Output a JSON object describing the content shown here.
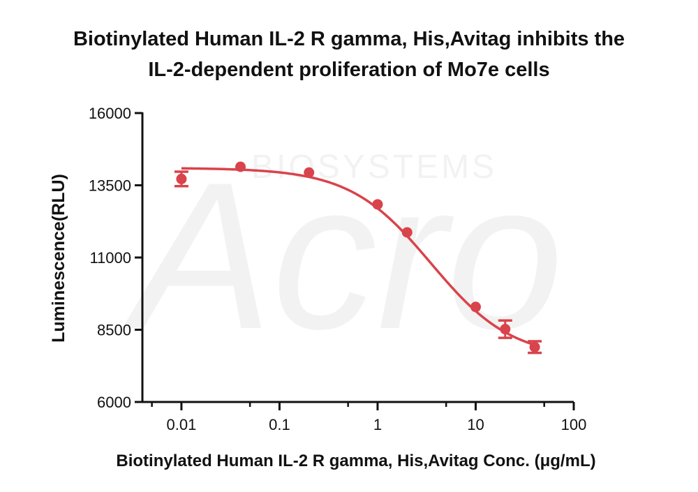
{
  "title_line1": "Biotinylated Human IL-2 R gamma, His,Avitag inhibits the",
  "title_line2": "IL-2-dependent proliferation of Mo7e cells",
  "watermark": {
    "text": "Acro",
    "subtext": "BIOSYSTEMS"
  },
  "chart_data": {
    "type": "scatter",
    "title": "Biotinylated Human IL-2 R gamma, His,Avitag inhibits the IL-2-dependent proliferation of Mo7e cells",
    "xlabel": "Biotinylated Human IL-2 R gamma, His,Avitag Conc. (μg/mL)",
    "ylabel": "Luminescence(RLU)",
    "xscale": "log",
    "xlim": [
      0.004,
      100
    ],
    "ylim": [
      6000,
      16000
    ],
    "xticks": [
      0.01,
      0.1,
      1,
      10,
      100
    ],
    "xtick_labels": [
      "0.01",
      "0.1",
      "1",
      "10",
      "100"
    ],
    "yticks": [
      6000,
      8500,
      11000,
      13500,
      16000
    ],
    "ytick_labels": [
      "6000",
      "8500",
      "11000",
      "13500",
      "16000"
    ],
    "color": "#d9434b",
    "grid": false,
    "points": [
      {
        "x": 0.01,
        "y": 13720,
        "err": 250
      },
      {
        "x": 0.04,
        "y": 14140,
        "err": 0
      },
      {
        "x": 0.2,
        "y": 13940,
        "err": 0
      },
      {
        "x": 1,
        "y": 12840,
        "err": 0
      },
      {
        "x": 2,
        "y": 11870,
        "err": 0
      },
      {
        "x": 10,
        "y": 9290,
        "err": 0
      },
      {
        "x": 20,
        "y": 8520,
        "err": 300
      },
      {
        "x": 40,
        "y": 7900,
        "err": 200
      }
    ],
    "fit": {
      "model": "4PL",
      "top": 14100,
      "bottom": 7500,
      "ec50": 3.5,
      "hill": 1.05
    }
  }
}
